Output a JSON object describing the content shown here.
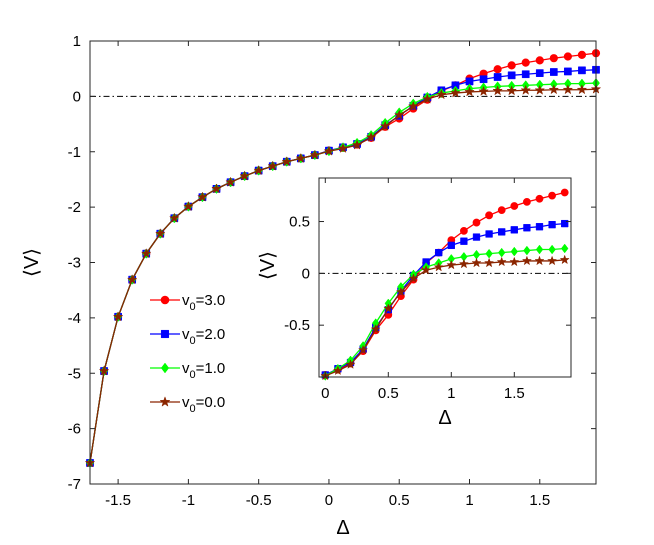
{
  "chart_data": [
    {
      "id": "main",
      "type": "line",
      "xlabel": "Δ",
      "ylabel": "⟨V⟩",
      "xlim": [
        -1.7,
        1.9
      ],
      "ylim": [
        -7,
        1
      ],
      "xticks": [
        -1.5,
        -1,
        -0.5,
        0,
        0.5,
        1,
        1.5
      ],
      "xtick_labels": [
        "-1.5",
        "-1",
        "-0.5",
        "0",
        "0.5",
        "1",
        "1.5"
      ],
      "yticks": [
        -7,
        -6,
        -5,
        -4,
        -3,
        -2,
        -1,
        0,
        1
      ],
      "ytick_labels": [
        "-7",
        "-6",
        "-5",
        "-4",
        "-3",
        "-2",
        "-1",
        "0",
        "1"
      ],
      "reference_line": {
        "y": 0,
        "style": "dash-dot",
        "color": "#000000"
      },
      "legend_position": "center-left",
      "series": [
        {
          "name": "v0=3.0",
          "label_base": "v",
          "label_sub": "0",
          "label_value": "=3.0",
          "color": "#ff0000",
          "marker": "circle",
          "x": [
            -1.7,
            -1.6,
            -1.5,
            -1.4,
            -1.3,
            -1.2,
            -1.1,
            -1.0,
            -0.9,
            -0.8,
            -0.7,
            -0.6,
            -0.5,
            -0.4,
            -0.3,
            -0.2,
            -0.1,
            0.0,
            0.1,
            0.2,
            0.3,
            0.4,
            0.5,
            0.6,
            0.7,
            0.8,
            0.9,
            1.0,
            1.1,
            1.2,
            1.3,
            1.4,
            1.5,
            1.6,
            1.7,
            1.8,
            1.9
          ],
          "y": [
            -6.62,
            -4.96,
            -3.98,
            -3.31,
            -2.84,
            -2.48,
            -2.2,
            -1.99,
            -1.82,
            -1.67,
            -1.55,
            -1.44,
            -1.34,
            -1.26,
            -1.18,
            -1.12,
            -1.06,
            -0.98,
            -0.93,
            -0.87,
            -0.75,
            -0.55,
            -0.4,
            -0.22,
            -0.06,
            0.1,
            0.2,
            0.32,
            0.41,
            0.49,
            0.56,
            0.61,
            0.65,
            0.69,
            0.72,
            0.75,
            0.78
          ]
        },
        {
          "name": "v0=2.0",
          "label_base": "v",
          "label_sub": "0",
          "label_value": "=2.0",
          "color": "#0000ff",
          "marker": "square",
          "x": [
            -1.7,
            -1.6,
            -1.5,
            -1.4,
            -1.3,
            -1.2,
            -1.1,
            -1.0,
            -0.9,
            -0.8,
            -0.7,
            -0.6,
            -0.5,
            -0.4,
            -0.3,
            -0.2,
            -0.1,
            0.0,
            0.1,
            0.2,
            0.3,
            0.4,
            0.5,
            0.6,
            0.7,
            0.8,
            0.9,
            1.0,
            1.1,
            1.2,
            1.3,
            1.4,
            1.5,
            1.6,
            1.7,
            1.8,
            1.9
          ],
          "y": [
            -6.62,
            -4.96,
            -3.98,
            -3.31,
            -2.84,
            -2.48,
            -2.2,
            -1.99,
            -1.82,
            -1.67,
            -1.55,
            -1.44,
            -1.34,
            -1.26,
            -1.18,
            -1.12,
            -1.06,
            -0.98,
            -0.92,
            -0.86,
            -0.73,
            -0.52,
            -0.35,
            -0.17,
            -0.02,
            0.11,
            0.2,
            0.27,
            0.31,
            0.35,
            0.38,
            0.4,
            0.42,
            0.44,
            0.45,
            0.47,
            0.48
          ]
        },
        {
          "name": "v0=1.0",
          "label_base": "v",
          "label_sub": "0",
          "label_value": "=1.0",
          "color": "#00ff00",
          "marker": "diamond",
          "x": [
            -1.7,
            -1.6,
            -1.5,
            -1.4,
            -1.3,
            -1.2,
            -1.1,
            -1.0,
            -0.9,
            -0.8,
            -0.7,
            -0.6,
            -0.5,
            -0.4,
            -0.3,
            -0.2,
            -0.1,
            0.0,
            0.1,
            0.2,
            0.3,
            0.4,
            0.5,
            0.6,
            0.7,
            0.8,
            0.9,
            1.0,
            1.1,
            1.2,
            1.3,
            1.4,
            1.5,
            1.6,
            1.7,
            1.8,
            1.9
          ],
          "y": [
            -6.62,
            -4.96,
            -3.98,
            -3.31,
            -2.84,
            -2.48,
            -2.2,
            -1.99,
            -1.82,
            -1.67,
            -1.55,
            -1.44,
            -1.34,
            -1.26,
            -1.18,
            -1.12,
            -1.06,
            -0.99,
            -0.92,
            -0.84,
            -0.7,
            -0.48,
            -0.29,
            -0.13,
            -0.01,
            0.06,
            0.1,
            0.14,
            0.16,
            0.18,
            0.19,
            0.2,
            0.21,
            0.22,
            0.23,
            0.23,
            0.24
          ]
        },
        {
          "name": "v0=0.0",
          "label_base": "v",
          "label_sub": "0",
          "label_value": "=0.0",
          "color": "#8b2500",
          "marker": "star",
          "x": [
            -1.7,
            -1.6,
            -1.5,
            -1.4,
            -1.3,
            -1.2,
            -1.1,
            -1.0,
            -0.9,
            -0.8,
            -0.7,
            -0.6,
            -0.5,
            -0.4,
            -0.3,
            -0.2,
            -0.1,
            0.0,
            0.1,
            0.2,
            0.3,
            0.4,
            0.5,
            0.6,
            0.7,
            0.8,
            0.9,
            1.0,
            1.1,
            1.2,
            1.3,
            1.4,
            1.5,
            1.6,
            1.7,
            1.8,
            1.9
          ],
          "y": [
            -6.62,
            -4.96,
            -3.98,
            -3.31,
            -2.84,
            -2.48,
            -2.2,
            -1.99,
            -1.82,
            -1.67,
            -1.55,
            -1.44,
            -1.34,
            -1.26,
            -1.18,
            -1.12,
            -1.06,
            -0.99,
            -0.94,
            -0.88,
            -0.74,
            -0.54,
            -0.34,
            -0.18,
            -0.05,
            0.03,
            0.06,
            0.08,
            0.09,
            0.1,
            0.1,
            0.11,
            0.11,
            0.12,
            0.12,
            0.12,
            0.13
          ]
        }
      ]
    },
    {
      "id": "inset",
      "type": "line",
      "xlabel": "Δ",
      "ylabel": "⟨V⟩",
      "xlim": [
        -0.05,
        1.95
      ],
      "ylim": [
        -1.0,
        0.92
      ],
      "xticks": [
        0,
        0.5,
        1,
        1.5
      ],
      "xtick_labels": [
        "0",
        "0.5",
        "1",
        "1.5"
      ],
      "yticks": [
        -0.5,
        0,
        0.5
      ],
      "ytick_labels": [
        "-0.5",
        "0",
        "0.5"
      ],
      "reference_line": {
        "y": 0,
        "style": "dash-dot",
        "color": "#000000"
      },
      "series_from": "main",
      "x_range_shown": [
        0,
        1.9
      ]
    }
  ]
}
